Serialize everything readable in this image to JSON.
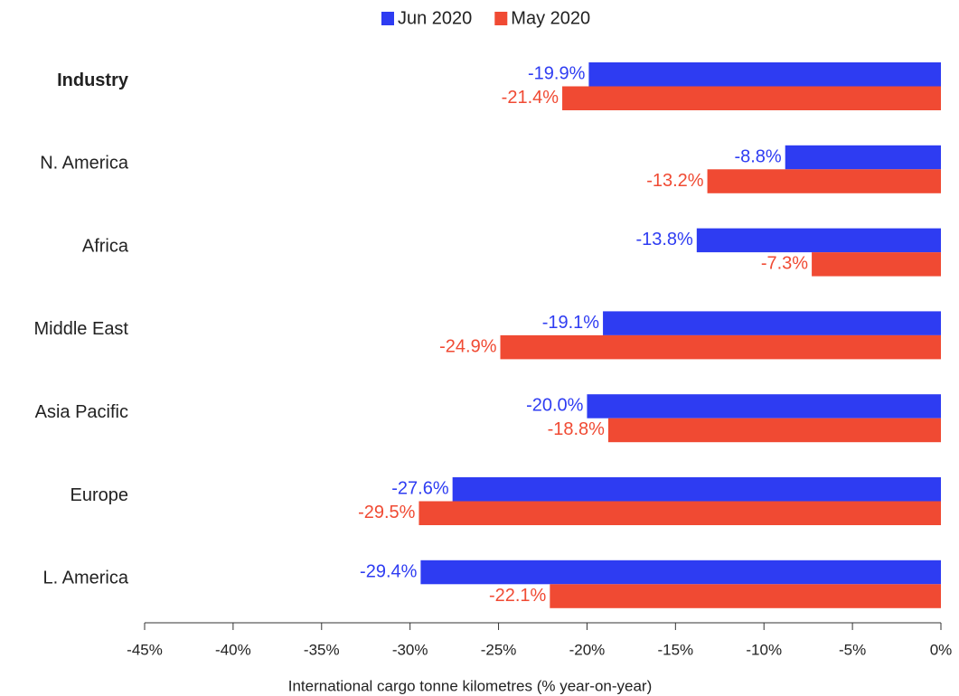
{
  "chart_data": {
    "type": "barh",
    "categories": [
      "Industry",
      "N. America",
      "Africa",
      "Middle East",
      "Asia Pacific",
      "Europe",
      "L. America"
    ],
    "series": [
      {
        "name": "Jun 2020",
        "color": "#2e3cf2",
        "values": [
          -19.9,
          -8.8,
          -13.8,
          -19.1,
          -20.0,
          -27.6,
          -29.4
        ],
        "value_labels": [
          "-19.9%",
          "-8.8%",
          "-13.8%",
          "-19.1%",
          "-20.0%",
          "-27.6%",
          "-29.4%"
        ]
      },
      {
        "name": "May 2020",
        "color": "#f04a33",
        "values": [
          -21.4,
          -13.2,
          -7.3,
          -24.9,
          -18.8,
          -29.5,
          -22.1
        ],
        "value_labels": [
          "-21.4%",
          "-13.2%",
          "-7.3%",
          "-24.9%",
          "-18.8%",
          "-29.5%",
          "-22.1%"
        ]
      }
    ],
    "xlim": [
      -45,
      0
    ],
    "xticks": [
      {
        "value": -45,
        "label": "-45%"
      },
      {
        "value": -40,
        "label": "-40%"
      },
      {
        "value": -35,
        "label": "-35%"
      },
      {
        "value": -30,
        "label": "-30%"
      },
      {
        "value": -25,
        "label": "-25%"
      },
      {
        "value": -20,
        "label": "-20%"
      },
      {
        "value": -15,
        "label": "-15%"
      },
      {
        "value": -10,
        "label": "-10%"
      },
      {
        "value": -5,
        "label": "-5%"
      },
      {
        "value": 0,
        "label": "0%"
      }
    ],
    "xlabel": "International cargo tonne kilometres (% year-on-year)",
    "grid": false,
    "legend": "top"
  }
}
